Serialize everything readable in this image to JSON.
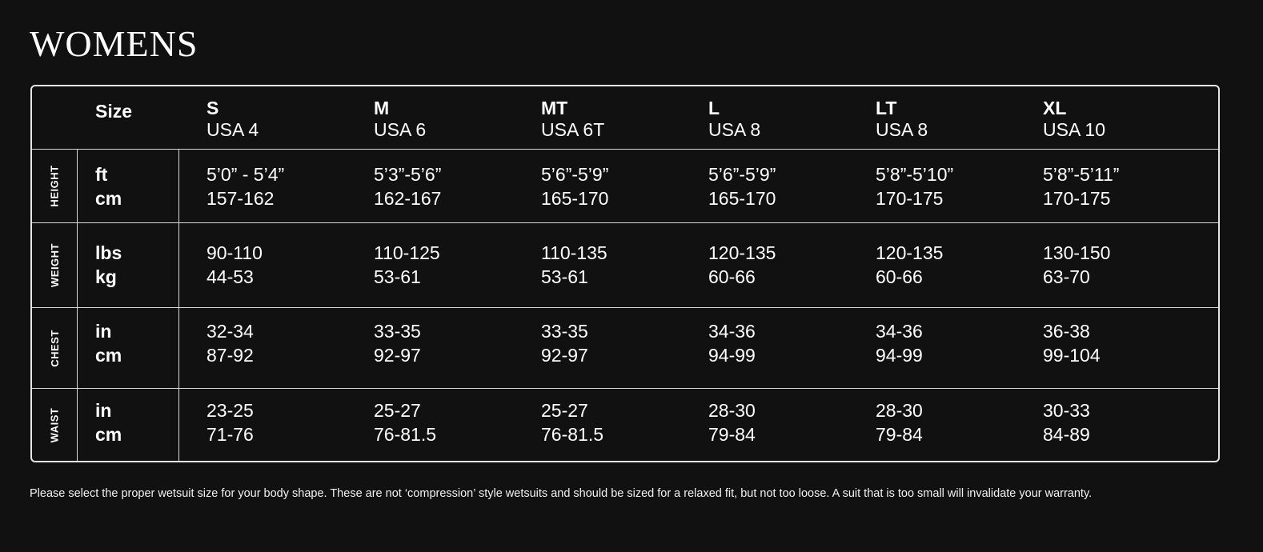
{
  "title": "WOMENS",
  "table": {
    "size_label": "Size",
    "sizes": [
      {
        "code": "S",
        "usa": "USA 4"
      },
      {
        "code": "M",
        "usa": "USA 6"
      },
      {
        "code": "MT",
        "usa": "USA 6T"
      },
      {
        "code": "L",
        "usa": "USA 8"
      },
      {
        "code": "LT",
        "usa": "USA 8"
      },
      {
        "code": "XL",
        "usa": "USA 10"
      }
    ],
    "rows": [
      {
        "category": "HEIGHT",
        "unit1": "ft",
        "unit2": "cm",
        "values": [
          [
            "5’0” - 5’4”",
            "157-162"
          ],
          [
            "5’3”-5’6”",
            "162-167"
          ],
          [
            "5’6”-5’9”",
            "165-170"
          ],
          [
            "5’6”-5’9”",
            "165-170"
          ],
          [
            "5’8”-5’10”",
            "170-175"
          ],
          [
            "5’8”-5’11”",
            "170-175"
          ]
        ]
      },
      {
        "category": "WEIGHT",
        "unit1": "lbs",
        "unit2": "kg",
        "values": [
          [
            "90-110",
            "44-53"
          ],
          [
            "110-125",
            "53-61"
          ],
          [
            "110-135",
            "53-61"
          ],
          [
            "120-135",
            "60-66"
          ],
          [
            "120-135",
            "60-66"
          ],
          [
            "130-150",
            "63-70"
          ]
        ]
      },
      {
        "category": "CHEST",
        "unit1": "in",
        "unit2": "cm",
        "values": [
          [
            "32-34",
            "87-92"
          ],
          [
            "33-35",
            "92-97"
          ],
          [
            "33-35",
            "92-97"
          ],
          [
            "34-36",
            "94-99"
          ],
          [
            "34-36",
            "94-99"
          ],
          [
            "36-38",
            "99-104"
          ]
        ]
      },
      {
        "category": "WAIST",
        "unit1": "in",
        "unit2": "cm",
        "values": [
          [
            "23-25",
            "71-76"
          ],
          [
            "25-27",
            "76-81.5"
          ],
          [
            "25-27",
            "76-81.5"
          ],
          [
            "28-30",
            "79-84"
          ],
          [
            "28-30",
            "79-84"
          ],
          [
            "30-33",
            "84-89"
          ]
        ]
      }
    ]
  },
  "disclaimer": "Please select the proper wetsuit size for your body shape. These are not ‘compression’ style wetsuits and should be sized for a relaxed fit, but not too loose. A suit that is too small will invalidate your warranty.",
  "colors": {
    "background": "#111111",
    "text": "#ffffff",
    "border": "#e6e6e6"
  }
}
